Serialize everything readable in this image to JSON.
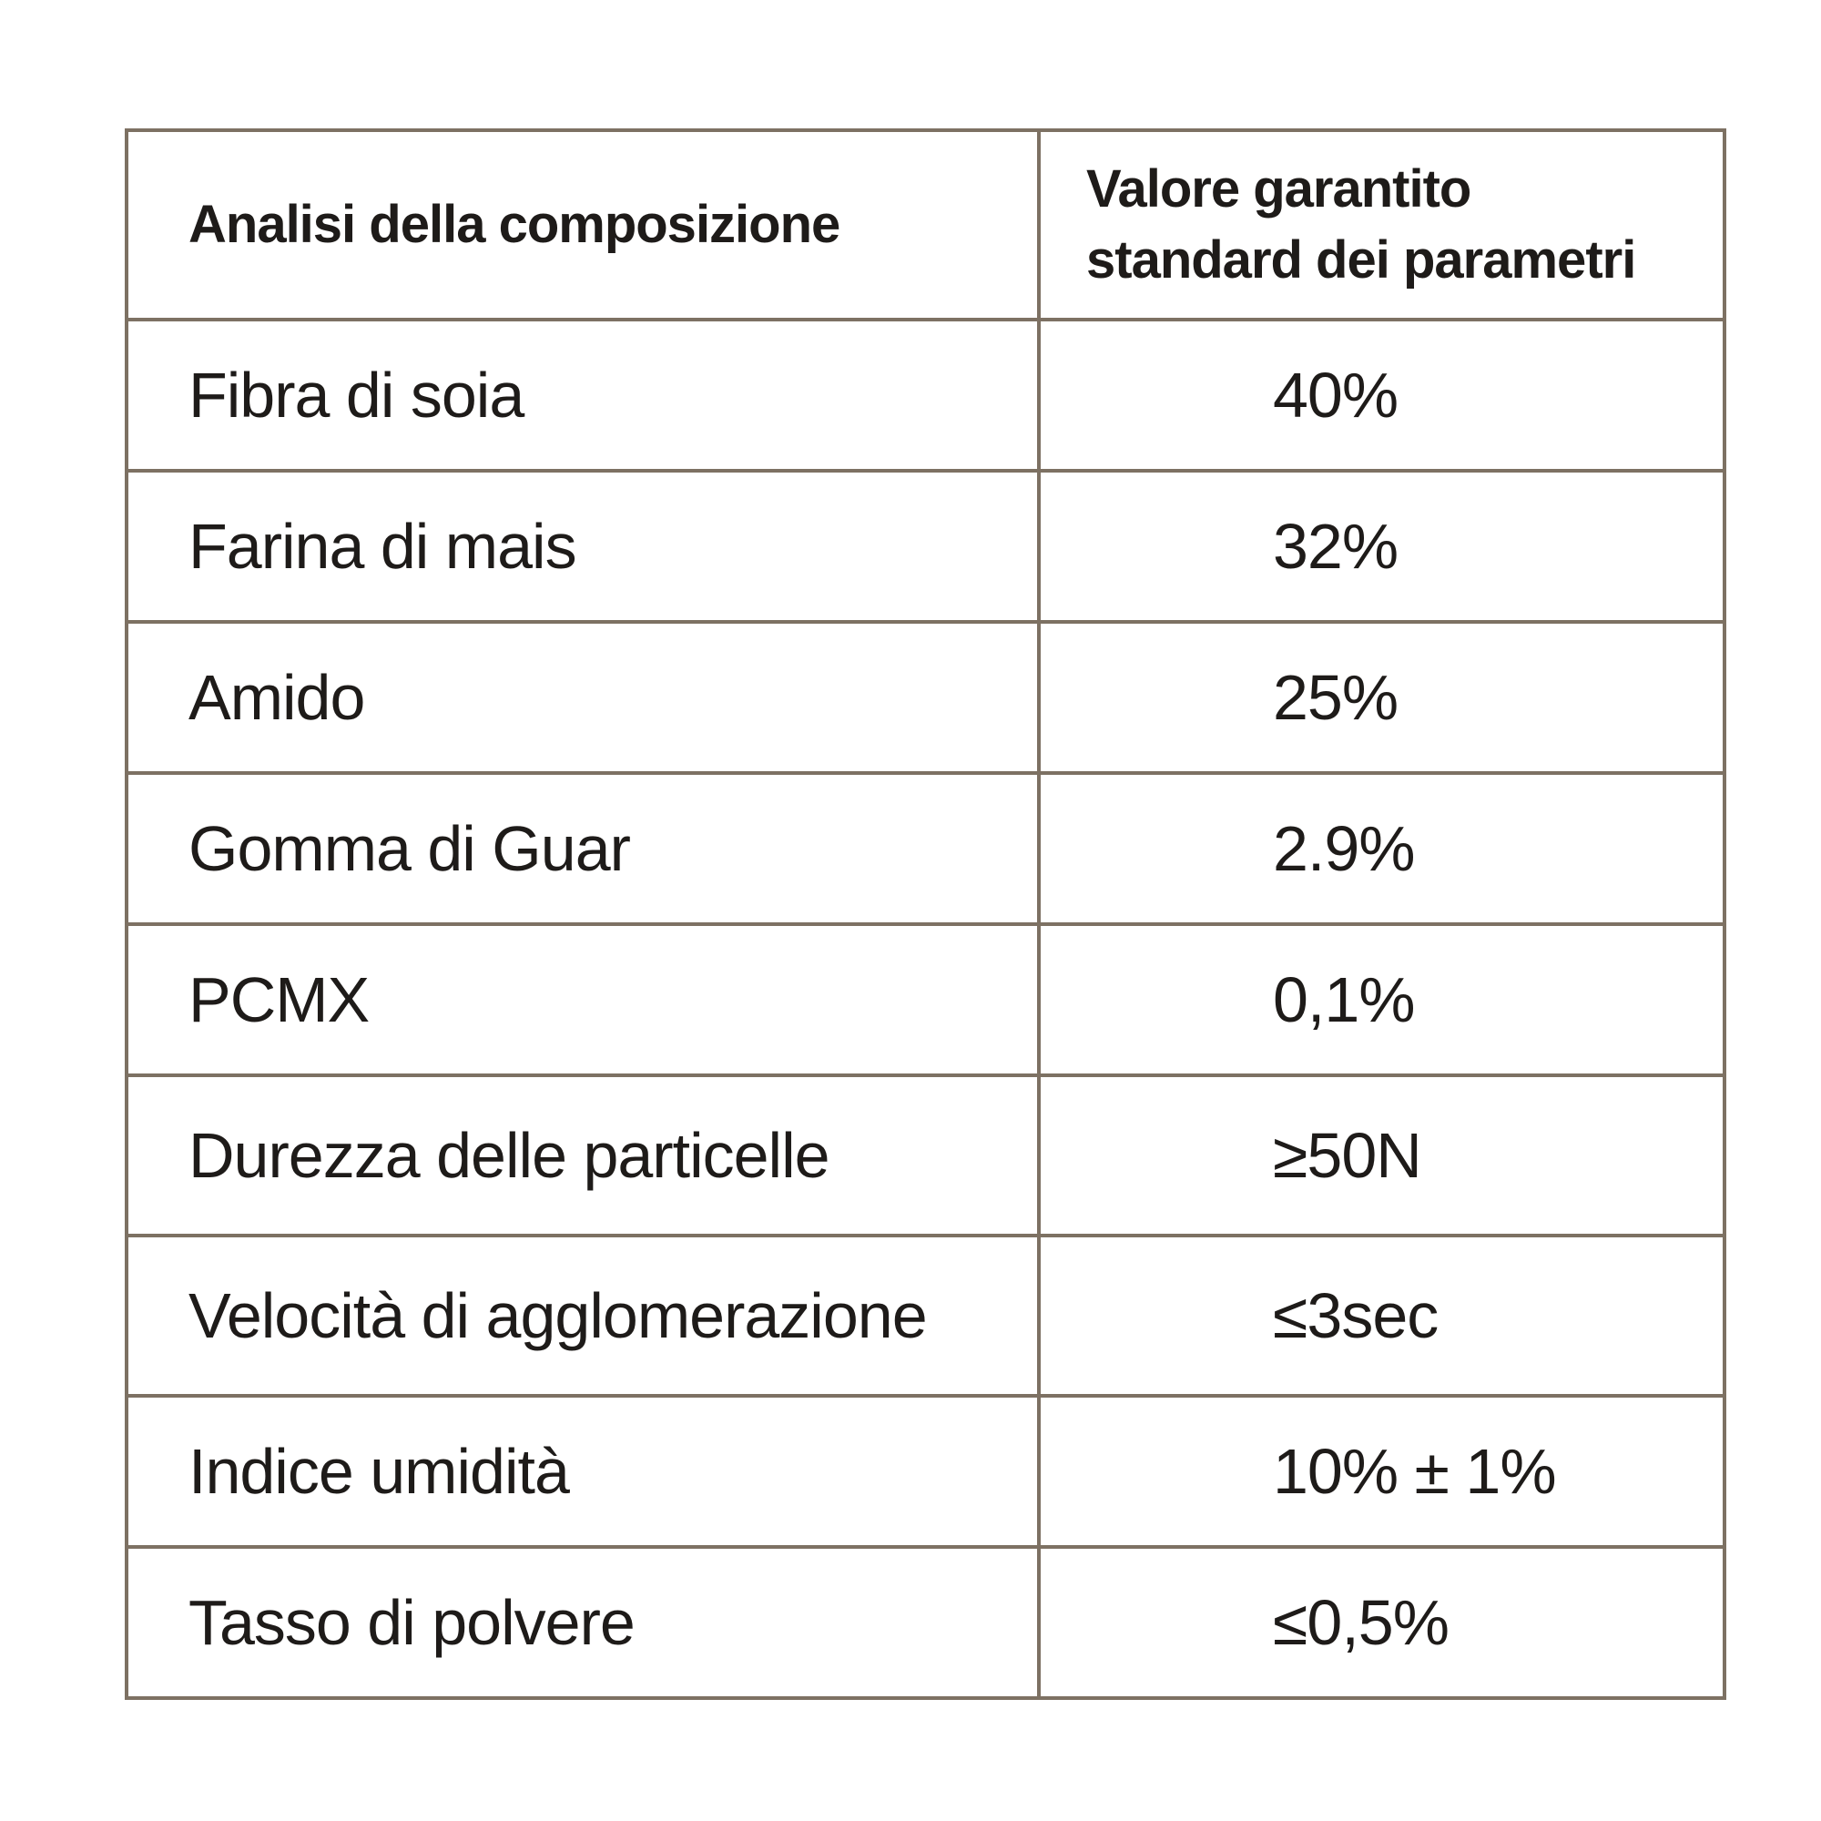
{
  "table": {
    "headers": {
      "component": "Analisi della composizione",
      "value_line1": "Valore garantito",
      "value_line2": "standard dei parametri"
    },
    "rows": [
      {
        "name": "Fibra di soia",
        "value": "40%"
      },
      {
        "name": "Farina di mais",
        "value": "32%"
      },
      {
        "name": "Amido",
        "value": "25%"
      },
      {
        "name": "Gomma di Guar",
        "value": "2.9%"
      },
      {
        "name": "PCMX",
        "value": "0,1%"
      },
      {
        "name": "Durezza delle particelle",
        "value": "≥50N"
      },
      {
        "name": "Velocità di agglomerazione",
        "value": "≤3sec"
      },
      {
        "name": "Indice umidità",
        "value": "10% ± 1%"
      },
      {
        "name": "Tasso di polvere",
        "value": "≤0,5%"
      }
    ]
  }
}
